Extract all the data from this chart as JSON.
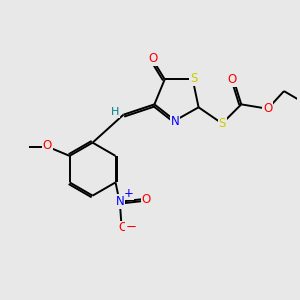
{
  "background_color": "#e8e8e8",
  "bond_color": "#000000",
  "atom_colors": {
    "O": "#ff0000",
    "S": "#cccc00",
    "N": "#0000ff",
    "C": "#000000",
    "H": "#008080"
  },
  "figsize": [
    3.0,
    3.0
  ],
  "dpi": 100,
  "lw": 1.4,
  "fs": 8.5
}
